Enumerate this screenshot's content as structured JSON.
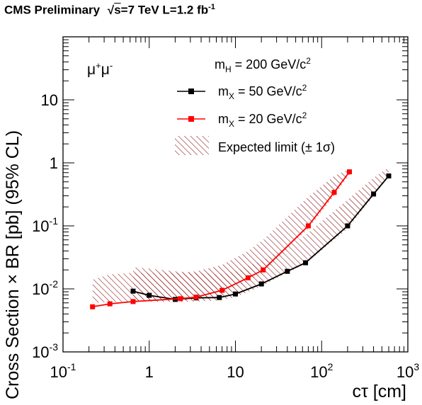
{
  "header": {
    "experiment": "CMS Preliminary",
    "energy_prefix": "√",
    "energy_s": "s",
    "energy_rest": "=7 TeV L=1.2 fb",
    "energy_sup": "-1"
  },
  "chart_data": {
    "type": "line",
    "title": "",
    "channel_label": {
      "base": "μ",
      "sup1": "+",
      "mid": "μ",
      "sup2": "-"
    },
    "xlabel": "cτ [cm]",
    "ylabel": "Cross Section × BR [pb] (95% CL)",
    "xscale": "log",
    "yscale": "log",
    "xlim": [
      0.1,
      1000
    ],
    "ylim": [
      0.001,
      100
    ],
    "x_tick_labels": [
      {
        "value": 0.1,
        "base": "10",
        "exp": "-1"
      },
      {
        "value": 1,
        "base": "1",
        "exp": ""
      },
      {
        "value": 10,
        "base": "10",
        "exp": ""
      },
      {
        "value": 100,
        "base": "10",
        "exp": "2"
      },
      {
        "value": 1000,
        "base": "10",
        "exp": "3"
      }
    ],
    "y_tick_labels": [
      {
        "value": 0.001,
        "base": "10",
        "exp": "-3"
      },
      {
        "value": 0.01,
        "base": "10",
        "exp": "-2"
      },
      {
        "value": 0.1,
        "base": "10",
        "exp": "-1"
      },
      {
        "value": 1,
        "base": "1",
        "exp": ""
      },
      {
        "value": 10,
        "base": "10",
        "exp": ""
      }
    ],
    "legend": {
      "header": {
        "base": "m",
        "sub": "H",
        "mid": " = 200 GeV/c",
        "sup": "2"
      },
      "placement": "top-right",
      "entries": [
        {
          "base": "m",
          "sub": "X",
          "mid": " = 50 GeV/c",
          "sup": "2",
          "color": "#000000"
        },
        {
          "base": "m",
          "sub": "X",
          "mid": " = 20 GeV/c",
          "sup": "2",
          "color": "#ff0000"
        },
        {
          "text": "Expected limit (± 1σ)",
          "color": "#800000"
        }
      ]
    },
    "series": [
      {
        "name": "mX = 50 GeV/c2",
        "color": "#000000",
        "x": [
          0.65,
          1.0,
          2.0,
          3.5,
          6.5,
          10,
          20,
          40,
          65,
          200,
          400,
          600
        ],
        "y": [
          0.0092,
          0.0079,
          0.0068,
          0.0072,
          0.0073,
          0.0083,
          0.012,
          0.019,
          0.026,
          0.1,
          0.32,
          0.62
        ],
        "band": {
          "x": [
            0.65,
            1.0,
            2.0,
            3.5,
            6.5,
            10,
            20,
            40,
            65,
            200,
            400,
            600
          ],
          "low": [
            0.0065,
            0.0063,
            0.0062,
            0.0063,
            0.0066,
            0.0074,
            0.011,
            0.018,
            0.025,
            0.09,
            0.3,
            0.6
          ],
          "high": [
            0.022,
            0.021,
            0.019,
            0.018,
            0.017,
            0.019,
            0.028,
            0.046,
            0.072,
            0.26,
            0.58,
            0.85
          ]
        }
      },
      {
        "name": "mX = 20 GeV/c2",
        "color": "#ff0000",
        "x": [
          0.22,
          0.35,
          0.65,
          2.3,
          3.5,
          7.0,
          14,
          21,
          70,
          140,
          210
        ],
        "y": [
          0.0052,
          0.0058,
          0.0063,
          0.007,
          0.0074,
          0.0095,
          0.015,
          0.02,
          0.1,
          0.34,
          0.72
        ],
        "band": {
          "x": [
            0.22,
            0.35,
            0.65,
            2.3,
            3.5,
            7.0,
            14,
            21,
            70,
            140,
            210
          ],
          "low": [
            0.006,
            0.0062,
            0.0063,
            0.0065,
            0.0068,
            0.0085,
            0.013,
            0.018,
            0.09,
            0.3,
            0.65
          ],
          "high": [
            0.014,
            0.017,
            0.018,
            0.018,
            0.019,
            0.024,
            0.04,
            0.06,
            0.29,
            0.62,
            0.8
          ]
        }
      }
    ]
  }
}
